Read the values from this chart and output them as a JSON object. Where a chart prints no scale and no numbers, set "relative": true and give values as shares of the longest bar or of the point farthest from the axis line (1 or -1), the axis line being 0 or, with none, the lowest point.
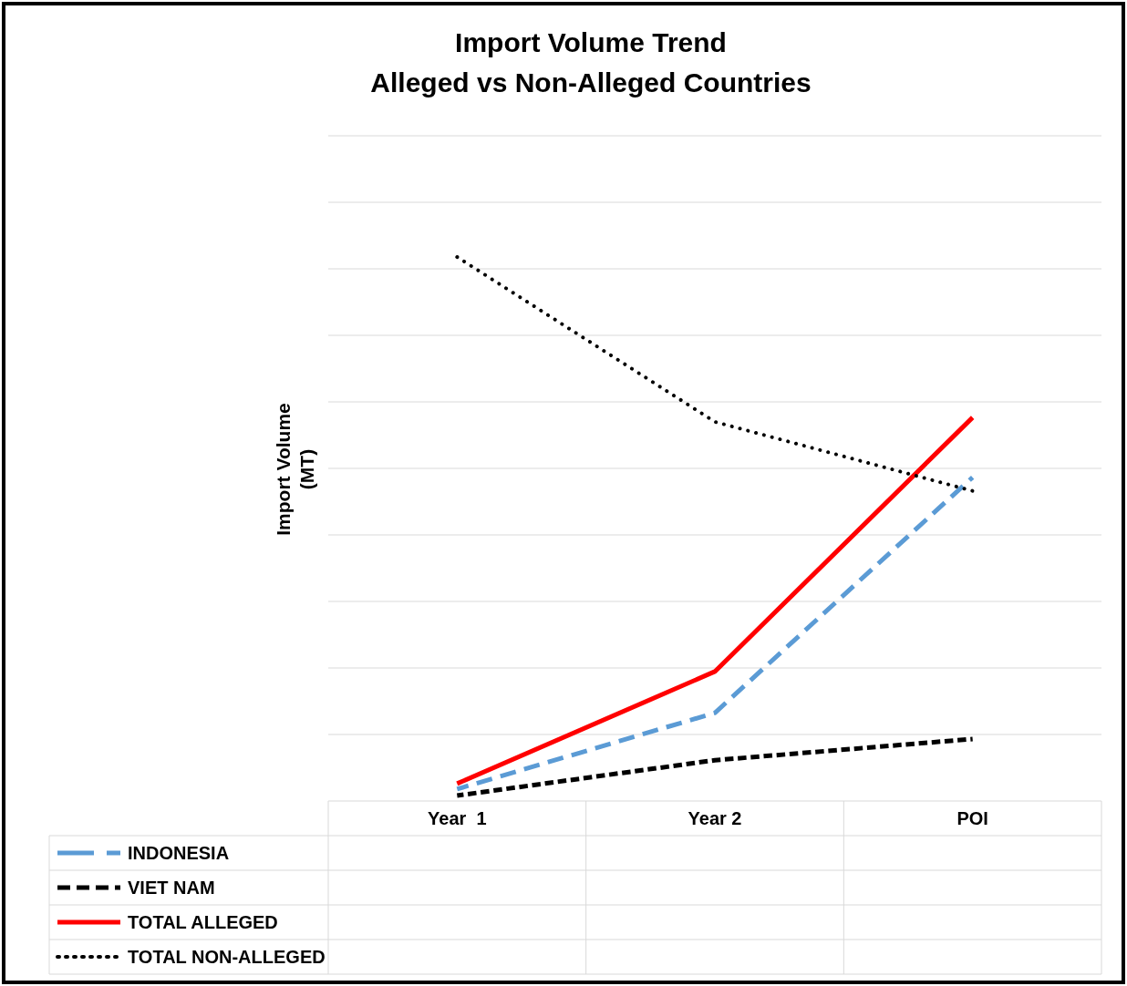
{
  "chart_data": {
    "type": "line",
    "title": "Import Volume Trend",
    "subtitle": "Alleged vs Non-Alleged Countries",
    "ylabel": "Import Volume\n(MT)",
    "relative": true,
    "grid": true,
    "legend": "bottom",
    "categories": [
      "Year  1",
      "Year 2",
      "POI"
    ],
    "series": [
      {
        "name": "INDONESIA",
        "color": "#5b9bd5",
        "line_style": "dashed",
        "values": [
          0.022,
          0.162,
          0.595
        ]
      },
      {
        "name": "VIET NAM",
        "color": "#000000",
        "line_style": "dashed",
        "values": [
          0.01,
          0.075,
          0.114
        ]
      },
      {
        "name": "TOTAL ALLEGED",
        "color": "#ff0000",
        "line_style": "solid",
        "values": [
          0.032,
          0.238,
          0.705
        ]
      },
      {
        "name": "TOTAL NON-ALLEGED",
        "color": "#000000",
        "line_style": "dotted",
        "values": [
          1,
          0.697,
          0.57
        ]
      }
    ]
  }
}
